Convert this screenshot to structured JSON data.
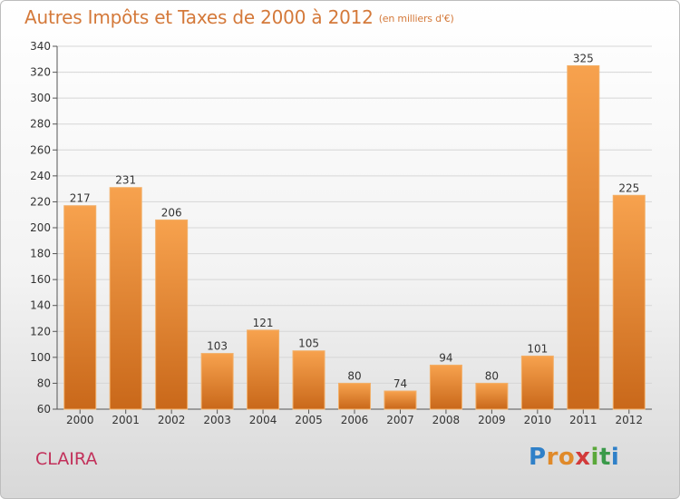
{
  "header": {
    "title": "Autres Impôts et Taxes de 2000 à 2012",
    "unit": "(en milliers d'€)"
  },
  "commune": "CLAIRA",
  "brand": {
    "letters": [
      "P",
      "r",
      "o",
      "x",
      "i",
      "t",
      "i"
    ]
  },
  "colors": {
    "bar_top": "#f7a24e",
    "bar_bottom": "#c9681a",
    "title": "#d4793a",
    "commune": "#c2305a",
    "grid": "#d6d6d6"
  },
  "chart_data": {
    "type": "bar",
    "title": "Autres Impôts et Taxes de 2000 à 2012",
    "subtitle": "(en milliers d'€)",
    "xlabel": "",
    "ylabel": "",
    "categories": [
      "2000",
      "2001",
      "2002",
      "2003",
      "2004",
      "2005",
      "2006",
      "2007",
      "2008",
      "2009",
      "2010",
      "2011",
      "2012"
    ],
    "values": [
      217,
      231,
      206,
      103,
      121,
      105,
      80,
      74,
      94,
      80,
      101,
      325,
      225
    ],
    "ylim": [
      60,
      340
    ],
    "yticks": [
      60,
      80,
      100,
      120,
      140,
      160,
      180,
      200,
      220,
      240,
      260,
      280,
      300,
      320,
      340
    ],
    "grid": true,
    "data_labels": true,
    "legend": "none"
  }
}
